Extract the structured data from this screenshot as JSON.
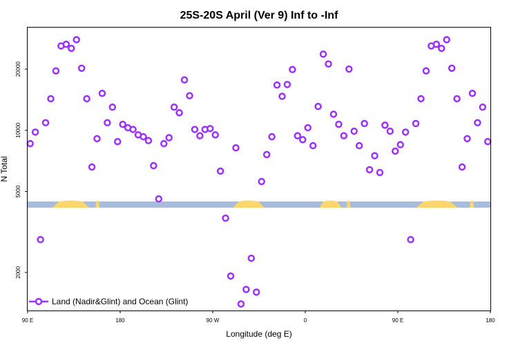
{
  "chart_data": {
    "type": "scatter",
    "title": "25S-20S April (Ver 9)   Inf to -Inf",
    "xlabel": "Longitude (deg E)",
    "ylabel": "N Total",
    "y_scale": "log",
    "xlim": [
      90,
      540
    ],
    "ylim": [
      1300,
      32000
    ],
    "x_ticks": [
      {
        "value": 90,
        "label": "90 E"
      },
      {
        "value": 180,
        "label": "180"
      },
      {
        "value": 270,
        "label": "90 W"
      },
      {
        "value": 360,
        "label": "0"
      },
      {
        "value": 450,
        "label": "90 E"
      },
      {
        "value": 540,
        "label": "180"
      }
    ],
    "y_ticks": [
      {
        "value": 2000,
        "label": "2000"
      },
      {
        "value": 5000,
        "label": "5000"
      },
      {
        "value": 10000,
        "label": "10000"
      },
      {
        "value": 20000,
        "label": "20000"
      }
    ],
    "legend": {
      "position": "bottom-left",
      "label": "Land (Nadir&Glint) and Ocean (Glint)"
    },
    "series": [
      {
        "name": "Land (Nadir&Glint) and Ocean (Glint)",
        "color": "#9b30ff",
        "points": [
          [
            92.5,
            8600
          ],
          [
            97.5,
            9800
          ],
          [
            102.5,
            2900
          ],
          [
            107.5,
            10900
          ],
          [
            112.5,
            14300
          ],
          [
            117.5,
            19600
          ],
          [
            122.5,
            26000
          ],
          [
            127.5,
            26500
          ],
          [
            132.5,
            25300
          ],
          [
            137.5,
            27900
          ],
          [
            142.5,
            20200
          ],
          [
            147.5,
            14300
          ],
          [
            152.5,
            6600
          ],
          [
            157.5,
            9100
          ],
          [
            162.5,
            15200
          ],
          [
            167.5,
            10900
          ],
          [
            172.5,
            13000
          ],
          [
            177.5,
            8800
          ],
          [
            182.5,
            10700
          ],
          [
            187.5,
            10300
          ],
          [
            192.5,
            10100
          ],
          [
            197.5,
            9500
          ],
          [
            202.5,
            9300
          ],
          [
            207.5,
            8900
          ],
          [
            212.5,
            6700
          ],
          [
            217.5,
            4600
          ],
          [
            222.5,
            8600
          ],
          [
            227.5,
            9200
          ],
          [
            232.5,
            13000
          ],
          [
            237.5,
            12200
          ],
          [
            242.5,
            17700
          ],
          [
            247.5,
            14800
          ],
          [
            252.5,
            10100
          ],
          [
            257.5,
            9400
          ],
          [
            262.5,
            10100
          ],
          [
            267.5,
            10200
          ],
          [
            272.5,
            9500
          ],
          [
            277.5,
            6300
          ],
          [
            282.5,
            3700
          ],
          [
            287.5,
            1920
          ],
          [
            292.5,
            8200
          ],
          [
            297.5,
            1400
          ],
          [
            302.5,
            1650
          ],
          [
            307.5,
            2350
          ],
          [
            312.5,
            1600
          ],
          [
            317.5,
            5600
          ],
          [
            322.5,
            7600
          ],
          [
            327.5,
            9300
          ],
          [
            332.5,
            16700
          ],
          [
            337.5,
            14700
          ],
          [
            342.5,
            16800
          ],
          [
            347.5,
            19900
          ],
          [
            352.5,
            9400
          ],
          [
            357.5,
            9000
          ],
          [
            362.5,
            10300
          ],
          [
            367.5,
            8400
          ],
          [
            372.5,
            13100
          ],
          [
            377.5,
            23700
          ],
          [
            382.5,
            21200
          ],
          [
            387.5,
            12000
          ],
          [
            392.5,
            10700
          ],
          [
            397.5,
            9400
          ],
          [
            402.5,
            20000
          ],
          [
            407.5,
            9900
          ],
          [
            412.5,
            8400
          ],
          [
            417.5,
            10800
          ],
          [
            422.5,
            6400
          ],
          [
            427.5,
            7500
          ],
          [
            432.5,
            6200
          ],
          [
            437.5,
            10600
          ],
          [
            442.5,
            9900
          ],
          [
            447.5,
            7900
          ],
          [
            452.5,
            8500
          ],
          [
            457.5,
            9800
          ],
          [
            462.5,
            2900
          ],
          [
            467.5,
            10800
          ],
          [
            472.5,
            14300
          ],
          [
            477.5,
            19600
          ],
          [
            482.5,
            26000
          ],
          [
            487.5,
            26500
          ],
          [
            492.5,
            25300
          ],
          [
            497.5,
            27900
          ],
          [
            502.5,
            20200
          ],
          [
            507.5,
            14300
          ],
          [
            512.5,
            6600
          ],
          [
            517.5,
            9100
          ],
          [
            522.5,
            15200
          ],
          [
            527.5,
            10900
          ],
          [
            532.5,
            13000
          ],
          [
            537.5,
            8800
          ]
        ]
      }
    ],
    "surface_strip": {
      "ocean_color": "#a9bcdc",
      "land_color": "#fcd770",
      "land_segments": [
        [
          114,
          150
        ],
        [
          156,
          160
        ],
        [
          290,
          320
        ],
        [
          374,
          395
        ],
        [
          400,
          404
        ],
        [
          468,
          508
        ],
        [
          520,
          524
        ]
      ]
    }
  }
}
